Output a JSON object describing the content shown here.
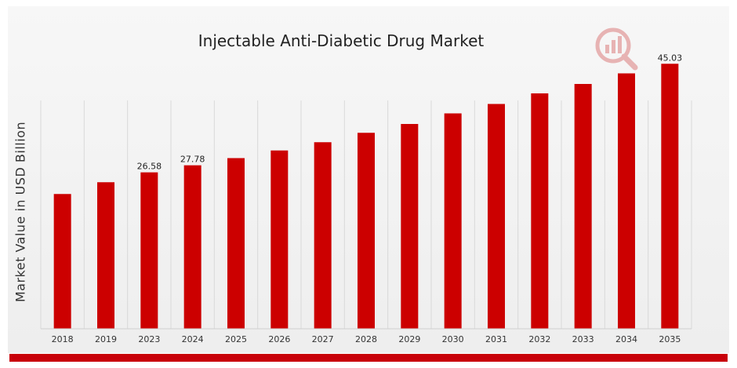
{
  "colors": {
    "bar": "#cc0000",
    "footer": "#c8000a",
    "grid": "#d9d9d9"
  },
  "logo": {
    "icon": "research-chart-icon"
  },
  "chart_data": {
    "type": "bar",
    "title": "Injectable Anti-Diabetic Drug Market",
    "ylabel": "Market Value in USD Billion",
    "xlabel": "",
    "ylim": [
      0,
      50
    ],
    "grid": "vertical",
    "categories": [
      "2018",
      "2019",
      "2023",
      "2024",
      "2025",
      "2026",
      "2027",
      "2028",
      "2029",
      "2030",
      "2031",
      "2032",
      "2033",
      "2034",
      "2035"
    ],
    "values": [
      22.9,
      24.9,
      26.58,
      27.78,
      29.0,
      30.3,
      31.7,
      33.3,
      34.8,
      36.6,
      38.2,
      40.0,
      41.6,
      43.4,
      45.03
    ],
    "data_labels": [
      {
        "index": 2,
        "text": "26.58"
      },
      {
        "index": 3,
        "text": "27.78"
      },
      {
        "index": 14,
        "text": "45.03"
      }
    ]
  }
}
